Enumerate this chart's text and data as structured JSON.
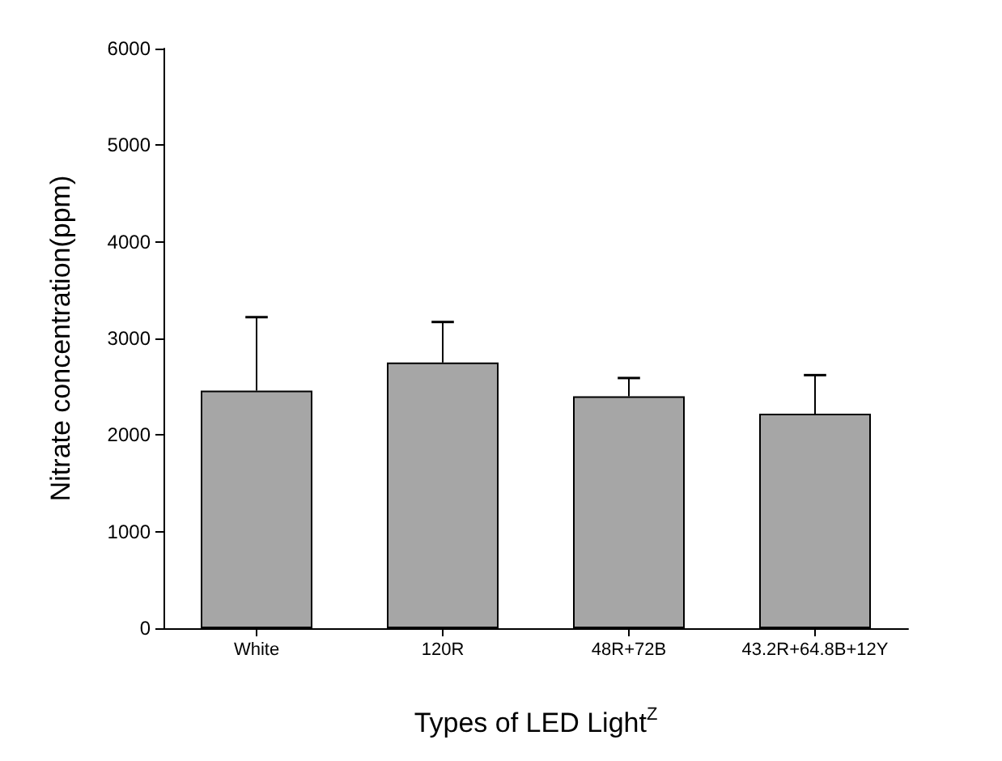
{
  "chart_data": {
    "type": "bar",
    "xlabel": "Types of LED Light$^{Z}$",
    "ylabel": "Nitrate concentration(ppm)",
    "categories": [
      "White",
      "120R",
      "48R+72B",
      "43.2R+64.8B+12Y"
    ],
    "values": [
      2460,
      2750,
      2400,
      2220
    ],
    "errors": [
      [
        2460,
        3220
      ],
      [
        2750,
        3170
      ],
      [
        2400,
        2590
      ],
      [
        2220,
        2620
      ]
    ],
    "color": "#a6a6a6",
    "ylim": [
      0,
      6000
    ],
    "yticks": [
      0,
      1000,
      2000,
      3000,
      4000,
      5000,
      6000
    ],
    "grid": false
  }
}
